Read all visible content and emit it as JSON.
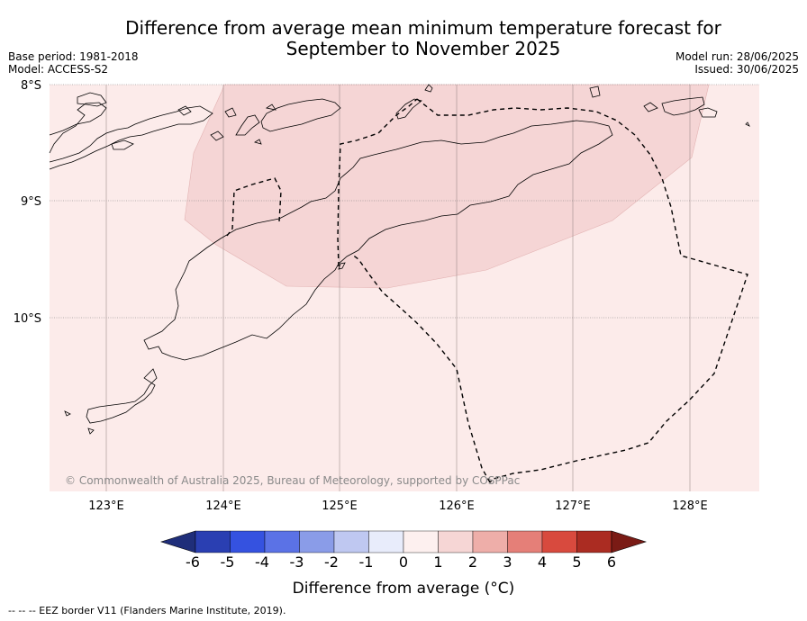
{
  "title_line1": "Difference from average mean minimum temperature forecast for",
  "title_line2": "September to November 2025",
  "base_period": "Base period: 1981-2018",
  "model": "Model: ACCESS-S2",
  "model_run": "Model run: 28/06/2025",
  "issued": "Issued: 30/06/2025",
  "lat_labels": [
    "8°S",
    "9°S",
    "10°S"
  ],
  "lon_labels": [
    "123°E",
    "124°E",
    "125°E",
    "126°E",
    "127°E",
    "128°E"
  ],
  "copyright": "© Commonwealth of Australia 2025, Bureau of Meteorology, supported by COSPPac",
  "colorbar": {
    "ticks": [
      "-6",
      "-5",
      "-4",
      "-3",
      "-2",
      "-1",
      "0",
      "1",
      "2",
      "3",
      "4",
      "5",
      "6"
    ],
    "colors": [
      "#1f2e7a",
      "#2a3fb2",
      "#3552e0",
      "#5b72e6",
      "#8a9ce8",
      "#bfc8f1",
      "#e8ecfb",
      "#fdf0ef",
      "#f6d6d5",
      "#eeaea9",
      "#e57f78",
      "#d84a3e",
      "#ab2c22",
      "#7a1b15"
    ],
    "label": "Difference from average (°C)"
  },
  "map": {
    "background_color": "#fcebea",
    "anomaly_region_color": "#f5d5d5"
  },
  "footer": "--  --  -- EEZ border V11 (Flanders Marine Institute, 2019)."
}
